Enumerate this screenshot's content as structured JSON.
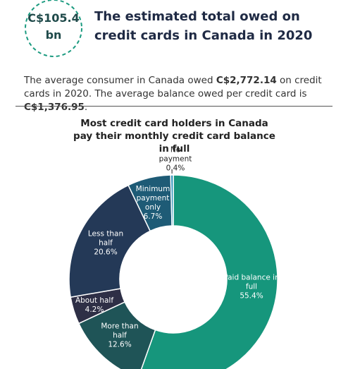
{
  "header": {
    "badge_line1": "C$105.4",
    "badge_line2": "bn",
    "title": "The estimated total owed on credit cards in Canada in 2020"
  },
  "paragraph": [
    "The average consumer in Canada owed ",
    "C$2,772.14",
    " on credit cards in 2020. The average balance owed per credit card is ",
    "C$1,376.95",
    "."
  ],
  "chart_data": {
    "type": "donut",
    "title": "Most credit card holders in Canada pay their monthly credit card balance in full",
    "categories": [
      "Paid balance in full",
      "More than half",
      "About half",
      "Less than half",
      "Minimum payment only",
      "No payment"
    ],
    "values": [
      55.4,
      12.6,
      4.2,
      20.6,
      6.7,
      0.4
    ],
    "value_labels": [
      "55.4%",
      "12.6%",
      "4.2%",
      "20.6%",
      "6.7%",
      "0.4%"
    ],
    "colors": [
      "#16967c",
      "#1f5457",
      "#2e2f46",
      "#243957",
      "#1e5b76",
      "#2a90b8"
    ]
  }
}
